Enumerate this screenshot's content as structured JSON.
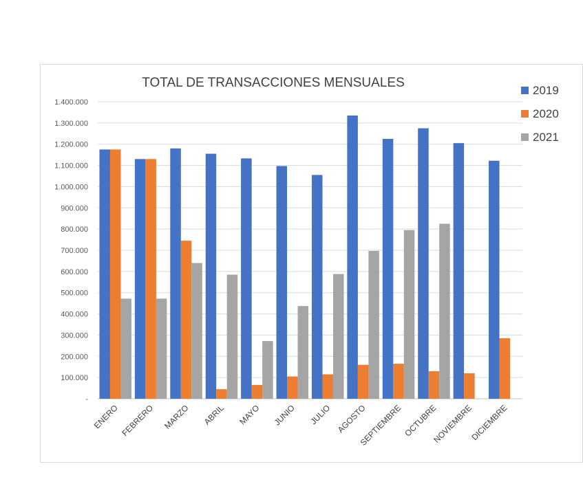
{
  "chart_data": {
    "type": "bar",
    "title": "TOTAL DE TRANSACCIONES MENSUALES",
    "xlabel": "",
    "ylabel": "",
    "ylim": [
      0,
      1400000
    ],
    "grid": true,
    "legend_position": "top-right",
    "y_ticks": [
      "-",
      "100.000",
      "200.000",
      "300.000",
      "400.000",
      "500.000",
      "600.000",
      "700.000",
      "800.000",
      "900.000",
      "1.000.000",
      "1.100.000",
      "1.200.000",
      "1.300.000",
      "1.400.000"
    ],
    "categories": [
      "ENERO",
      "FEBRERO",
      "MARZO",
      "ABRIL",
      "MAYO",
      "JUNIO",
      "JULIO",
      "AGOSTO",
      "SEPTIEMBRE",
      "OCTUBRE",
      "NOVIEMBRE",
      "DICIEMBRE"
    ],
    "series": [
      {
        "name": "2019",
        "color": "#4472c4",
        "values": [
          1175000,
          1130000,
          1180000,
          1155000,
          1133000,
          1097000,
          1055000,
          1335000,
          1225000,
          1275000,
          1205000,
          1122000
        ]
      },
      {
        "name": "2020",
        "color": "#ed7d31",
        "values": [
          1175000,
          1130000,
          745000,
          45000,
          65000,
          105000,
          115000,
          160000,
          165000,
          130000,
          120000,
          285000
        ]
      },
      {
        "name": "2021",
        "color": "#a5a5a5",
        "values": [
          472000,
          472000,
          640000,
          585000,
          272000,
          437000,
          588000,
          697000,
          795000,
          825000,
          null,
          null
        ]
      }
    ]
  }
}
